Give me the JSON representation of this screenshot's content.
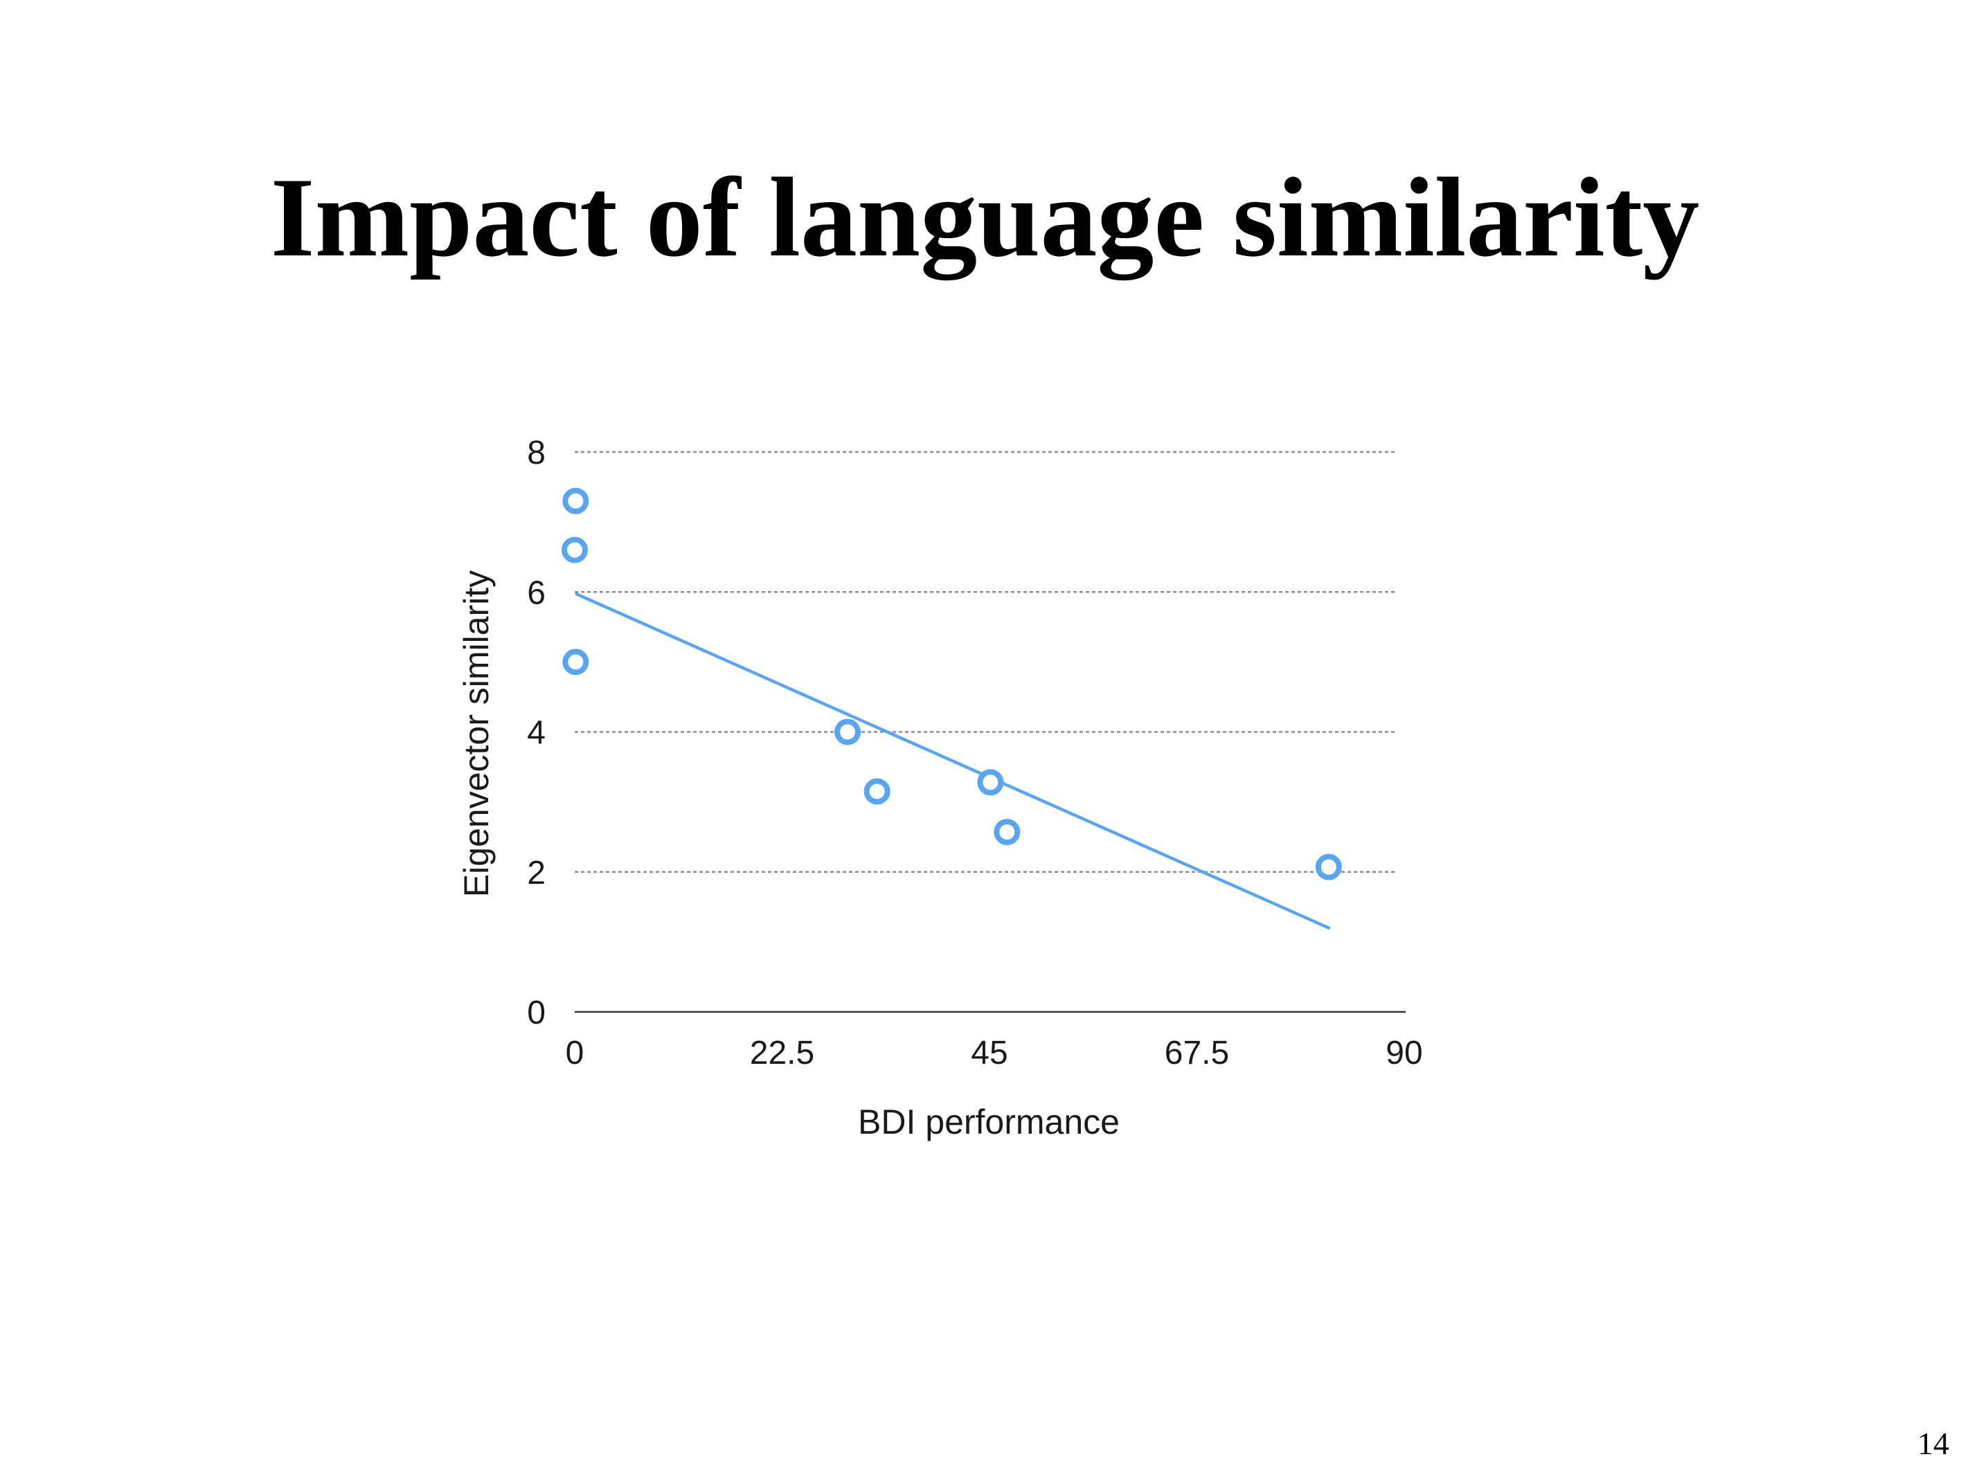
{
  "slide": {
    "title": "Impact of language similarity",
    "page_number": "14"
  },
  "colors": {
    "series": "#5aa5ef",
    "grid": "#8c8c8c",
    "axis": "#333333",
    "text": "#1a1a1a"
  },
  "chart_data": {
    "type": "scatter",
    "xlabel": "BDI performance",
    "ylabel": "Eigenvector similarity",
    "xlim": [
      0,
      90
    ],
    "ylim": [
      0,
      8
    ],
    "xticks": [
      0,
      22.5,
      45,
      67.5,
      90
    ],
    "xtick_labels": [
      "0",
      "22.5",
      "45",
      "67.5",
      "90"
    ],
    "yticks": [
      0,
      2,
      4,
      6,
      8
    ],
    "ytick_labels": [
      "0",
      "2",
      "4",
      "6",
      "8"
    ],
    "grid": "horizontal dotted",
    "legend": "none",
    "series": [
      {
        "marker": "open-circle",
        "points": [
          [
            0.1,
            7.3
          ],
          [
            0.0,
            6.6
          ],
          [
            0.1,
            5.0
          ],
          [
            29.6,
            4.0
          ],
          [
            32.8,
            3.15
          ],
          [
            45.1,
            3.28
          ],
          [
            46.9,
            2.57
          ],
          [
            81.8,
            2.07
          ]
        ]
      }
    ],
    "trendline": {
      "type": "linear",
      "from": [
        0.2,
        5.97
      ],
      "to": [
        81.8,
        1.2
      ]
    }
  }
}
